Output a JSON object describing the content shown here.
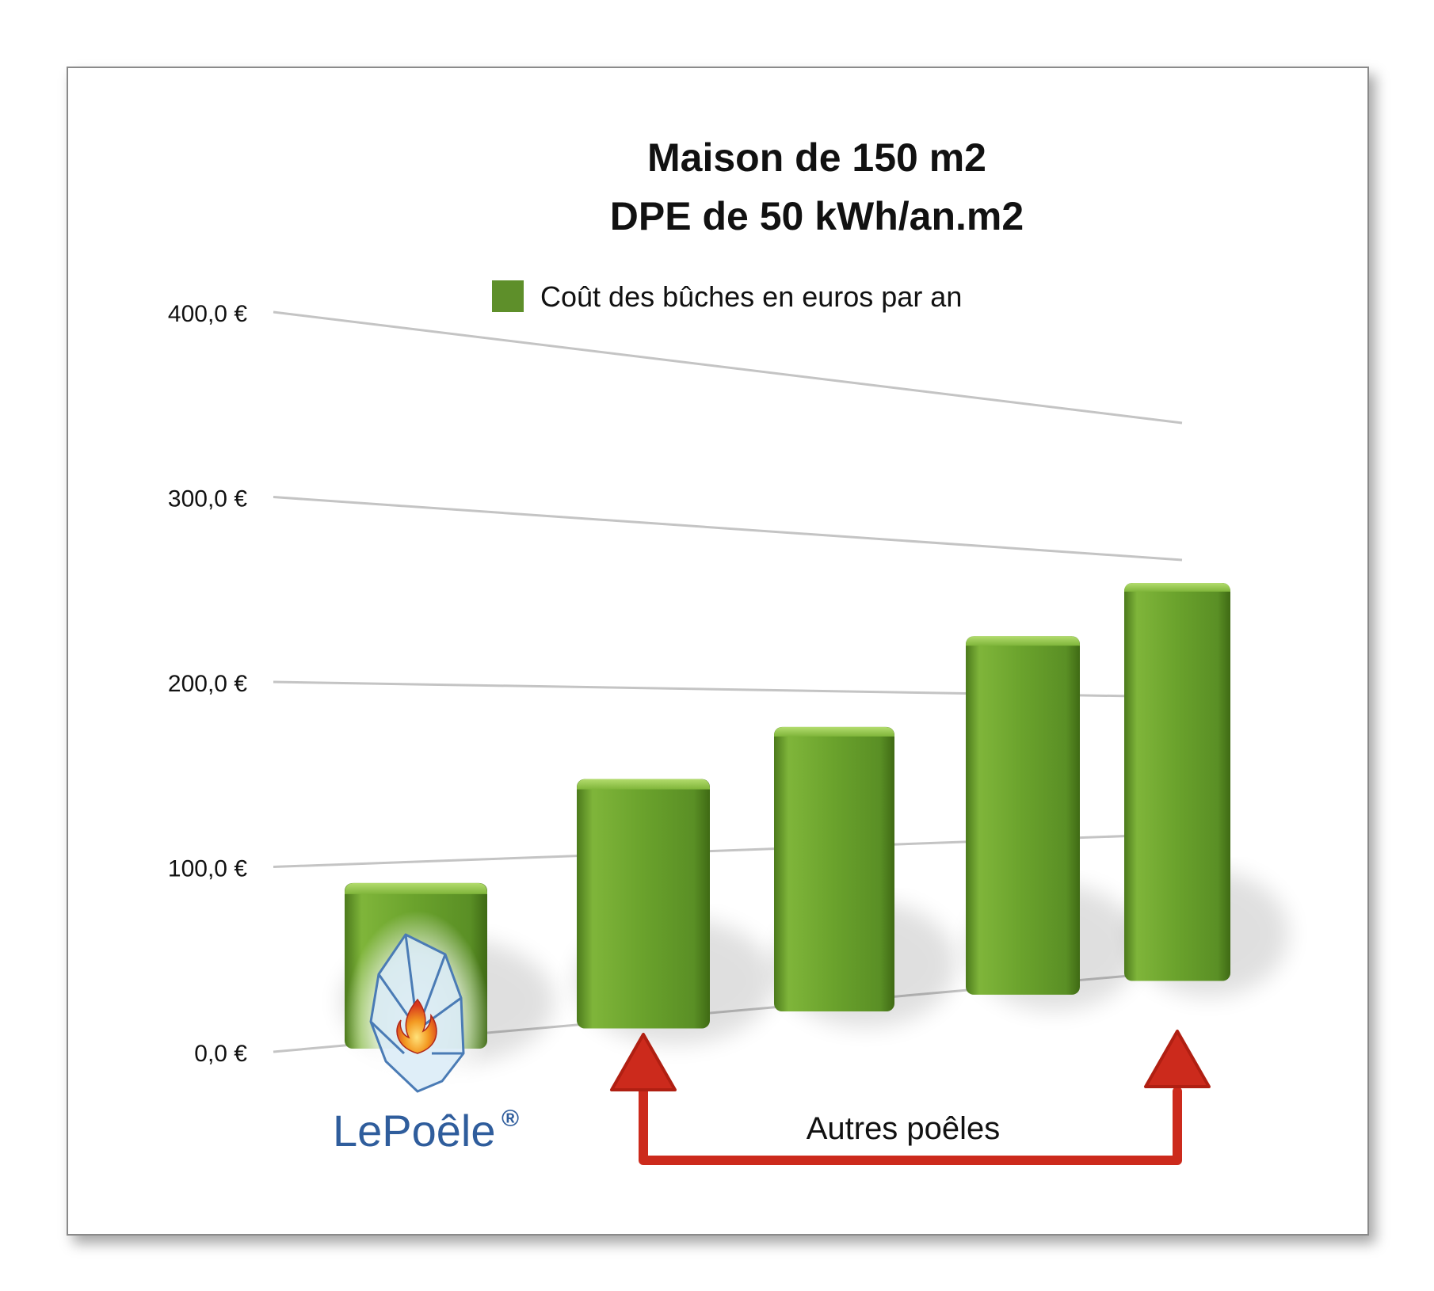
{
  "chart_data": {
    "type": "bar",
    "title": "Maison de 150 m2",
    "subtitle": "DPE de 50 kWh/an.m2",
    "legend": {
      "label": "Coût des bûches en euros par an",
      "color": "#5e8f2a",
      "position": "top"
    },
    "series": [
      {
        "name": "Coût des bûches en euros par an",
        "values": [
          88,
          145,
          177,
          240,
          283
        ]
      }
    ],
    "categories": [
      "",
      "",
      "",
      "",
      ""
    ],
    "yticks": [
      "0,0 €",
      "100,0 €",
      "200,0 €",
      "300,0 €",
      "400,0 €"
    ],
    "ylim": [
      0,
      400
    ],
    "grid": true,
    "annotations": {
      "logo_text": "LePoêle",
      "logo_mark": "®",
      "group_label": "Autres poêles",
      "arrow_color": "#cc2a1c"
    }
  }
}
